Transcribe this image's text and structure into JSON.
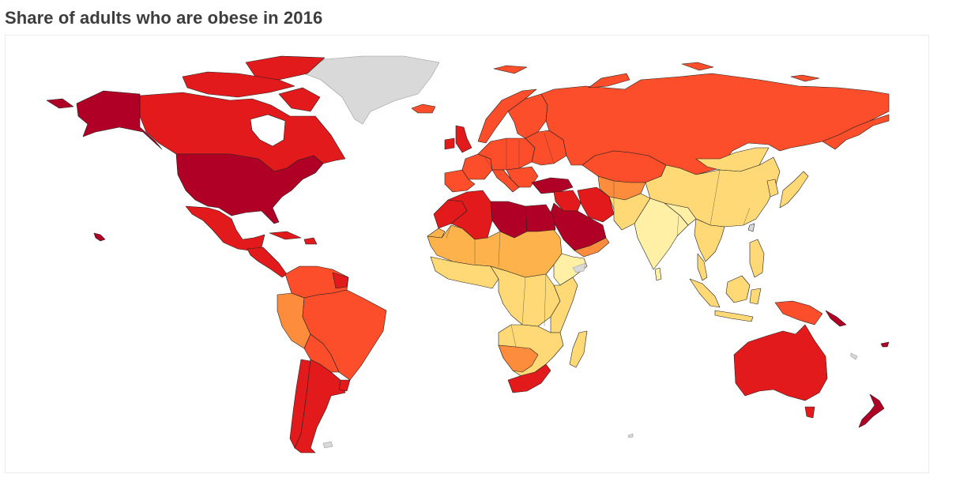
{
  "title": "Share of adults who are obese in 2016",
  "colors": {
    "no_data": "#d9d9d9",
    "very_low": "#fff0a6",
    "low": "#fed976",
    "medium_low": "#feb24c",
    "medium": "#fd8d3c",
    "medium_high": "#fc4e2a",
    "high": "#e31a1c",
    "very_high": "#b10026"
  }
}
